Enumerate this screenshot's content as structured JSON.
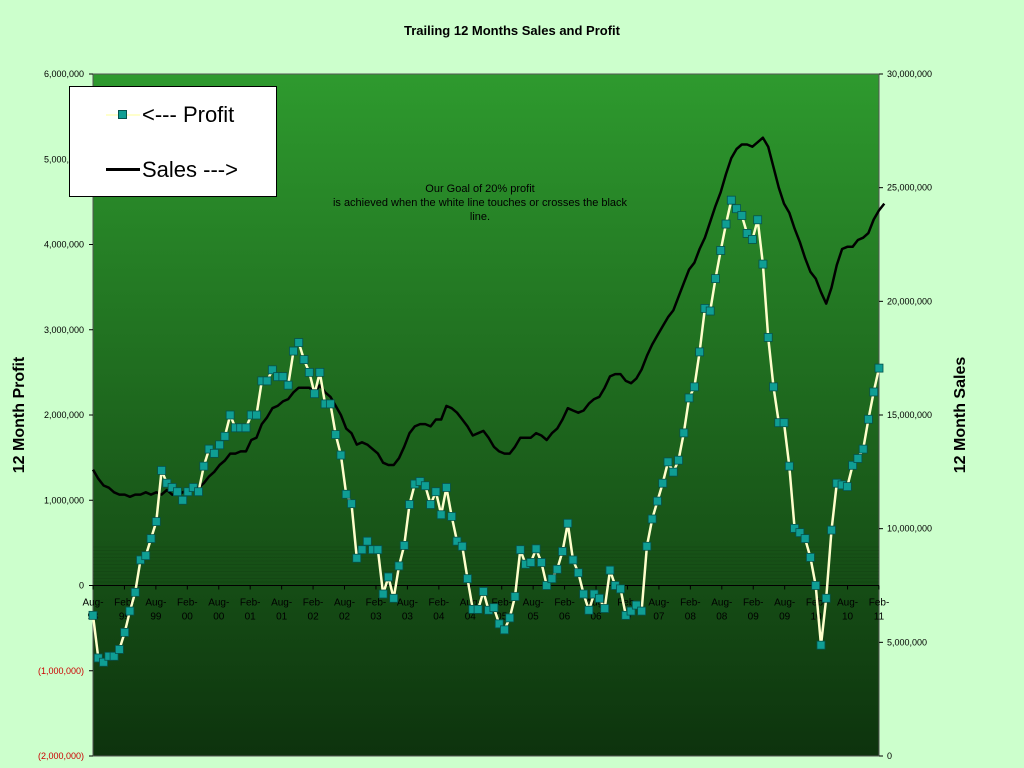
{
  "chart_data": {
    "type": "line",
    "title": "Trailing 12 Months Sales and Profit",
    "ylabel_left": "12 Month Profit",
    "ylabel_right": "12 Month Sales",
    "ylim_left": [
      -2000000,
      6000000
    ],
    "ylim_right": [
      0,
      30000000
    ],
    "left_ticks": [
      {
        "value": 6000000,
        "label": "6,000,000",
        "negative": false
      },
      {
        "value": 5000000,
        "label": "5,000,000",
        "negative": false
      },
      {
        "value": 4000000,
        "label": "4,000,000",
        "negative": false
      },
      {
        "value": 3000000,
        "label": "3,000,000",
        "negative": false
      },
      {
        "value": 2000000,
        "label": "2,000,000",
        "negative": false
      },
      {
        "value": 1000000,
        "label": "1,000,000",
        "negative": false
      },
      {
        "value": 0,
        "label": "0",
        "negative": false
      },
      {
        "value": -1000000,
        "label": "(1,000,000)",
        "negative": true
      },
      {
        "value": -2000000,
        "label": "(2,000,000)",
        "negative": true
      }
    ],
    "right_ticks": [
      {
        "value": 30000000,
        "label": "30,000,000"
      },
      {
        "value": 25000000,
        "label": "25,000,000"
      },
      {
        "value": 20000000,
        "label": "20,000,000"
      },
      {
        "value": 15000000,
        "label": "15,000,000"
      },
      {
        "value": 10000000,
        "label": "10,000,000"
      },
      {
        "value": 5000000,
        "label": "5,000,000"
      },
      {
        "value": 0,
        "label": "0"
      }
    ],
    "x_tick_labels": [
      [
        "Aug-",
        "98"
      ],
      [
        "Feb-",
        "99"
      ],
      [
        "Aug-",
        "99"
      ],
      [
        "Feb-",
        "00"
      ],
      [
        "Aug-",
        "00"
      ],
      [
        "Feb-",
        "01"
      ],
      [
        "Aug-",
        "01"
      ],
      [
        "Feb-",
        "02"
      ],
      [
        "Aug-",
        "02"
      ],
      [
        "Feb-",
        "03"
      ],
      [
        "Aug-",
        "03"
      ],
      [
        "Feb-",
        "04"
      ],
      [
        "Aug-",
        "04"
      ],
      [
        "Feb-",
        "05"
      ],
      [
        "Aug-",
        "05"
      ],
      [
        "Feb-",
        "06"
      ],
      [
        "Aug-",
        "06"
      ],
      [
        "Feb-",
        "07"
      ],
      [
        "Aug-",
        "07"
      ],
      [
        "Feb-",
        "08"
      ],
      [
        "Aug-",
        "08"
      ],
      [
        "Feb-",
        "09"
      ],
      [
        "Aug-",
        "09"
      ],
      [
        "Feb-",
        "10"
      ],
      [
        "Aug-",
        "10"
      ],
      [
        "Feb-",
        "11"
      ]
    ],
    "x_start": "Aug-98",
    "series": [
      {
        "name": "Profit",
        "axis": "left",
        "color": "#ffffcc",
        "marker_color": "#0f9e94",
        "values": [
          -350000,
          -850000,
          -900000,
          -830000,
          -830000,
          -750000,
          -550000,
          -300000,
          -80000,
          300000,
          350000,
          550000,
          750000,
          1350000,
          1200000,
          1150000,
          1100000,
          1000000,
          1100000,
          1150000,
          1100000,
          1400000,
          1600000,
          1550000,
          1650000,
          1750000,
          2000000,
          1850000,
          1850000,
          1850000,
          2000000,
          2000000,
          2400000,
          2400000,
          2530000,
          2450000,
          2450000,
          2350000,
          2750000,
          2850000,
          2650000,
          2500000,
          2250000,
          2500000,
          2130000,
          2130000,
          1770000,
          1530000,
          1070000,
          960000,
          320000,
          420000,
          520000,
          420000,
          420000,
          -100000,
          100000,
          -150000,
          230000,
          470000,
          950000,
          1190000,
          1220000,
          1170000,
          950000,
          1100000,
          830000,
          1150000,
          810000,
          520000,
          460000,
          80000,
          -280000,
          -280000,
          -70000,
          -290000,
          -260000,
          -450000,
          -520000,
          -380000,
          -130000,
          420000,
          250000,
          270000,
          430000,
          270000,
          0,
          80000,
          190000,
          400000,
          730000,
          300000,
          150000,
          -100000,
          -290000,
          -100000,
          -150000,
          -270000,
          180000,
          0,
          -40000,
          -350000,
          -300000,
          -230000,
          -300000,
          460000,
          780000,
          990000,
          1200000,
          1450000,
          1330000,
          1470000,
          1790000,
          2200000,
          2330000,
          2740000,
          3250000,
          3220000,
          3600000,
          3930000,
          4240000,
          4520000,
          4420000,
          4340000,
          4130000,
          4060000,
          4290000,
          3770000,
          2910000,
          2330000,
          1910000,
          1910000,
          1400000,
          670000,
          620000,
          550000,
          330000,
          0,
          -700000,
          -150000,
          650000,
          1200000,
          1180000,
          1160000,
          1410000,
          1490000,
          1600000,
          1950000,
          2270000,
          2550000
        ]
      },
      {
        "name": "Sales",
        "axis": "right",
        "color": "#000000",
        "values": [
          12600000,
          12200000,
          11900000,
          11800000,
          11600000,
          11500000,
          11500000,
          11400000,
          11500000,
          11500000,
          11600000,
          11500000,
          11600000,
          11500000,
          11700000,
          11500000,
          11500000,
          11600000,
          11700000,
          11800000,
          11800000,
          12000000,
          12300000,
          12500000,
          12800000,
          13000000,
          13300000,
          13300000,
          13400000,
          13400000,
          13900000,
          14000000,
          14600000,
          14900000,
          15300000,
          15400000,
          15600000,
          15700000,
          16000000,
          16200000,
          16200000,
          16200000,
          16000000,
          16300000,
          16000000,
          15800000,
          15400000,
          15000000,
          14400000,
          14200000,
          13700000,
          13800000,
          13700000,
          13500000,
          13300000,
          12900000,
          12800000,
          12800000,
          13100000,
          13600000,
          14200000,
          14500000,
          14600000,
          14600000,
          14500000,
          14800000,
          14800000,
          15400000,
          15300000,
          15100000,
          14800000,
          14500000,
          14100000,
          14200000,
          14300000,
          14000000,
          13600000,
          13400000,
          13300000,
          13300000,
          13600000,
          14000000,
          14000000,
          14000000,
          14200000,
          14100000,
          13900000,
          14200000,
          14400000,
          14800000,
          15300000,
          15200000,
          15100000,
          15200000,
          15500000,
          15700000,
          15800000,
          16200000,
          16700000,
          16800000,
          16800000,
          16500000,
          16400000,
          16600000,
          17000000,
          17600000,
          18100000,
          18500000,
          18900000,
          19300000,
          19600000,
          20200000,
          20800000,
          21400000,
          21700000,
          22300000,
          22800000,
          23500000,
          24200000,
          24800000,
          25600000,
          26300000,
          26700000,
          26900000,
          26900000,
          26800000,
          27000000,
          27200000,
          26800000,
          25900000,
          25000000,
          24300000,
          23900000,
          23200000,
          22600000,
          21900000,
          21300000,
          21000000,
          20400000,
          19900000,
          20600000,
          21600000,
          22300000,
          22400000,
          22400000,
          22700000,
          22800000,
          23000000,
          23600000,
          24000000,
          24300000
        ]
      }
    ],
    "annotation": [
      "Our Goal of 20% profit",
      "is achieved when the white line touches or crosses the black",
      "line."
    ],
    "legend": {
      "placement": "top-left",
      "items": [
        {
          "label": "<--- Profit",
          "marker_color": "#0f9e94",
          "line_color": "#ffffcc"
        },
        {
          "label": "Sales --->",
          "line_color": "#000000"
        }
      ]
    },
    "colors": {
      "page_background": "#ccffcc",
      "plot_gradient_top": "#2e9a2e",
      "plot_gradient_bottom": "#0d330d",
      "negative_tick": "#cc0000"
    }
  }
}
